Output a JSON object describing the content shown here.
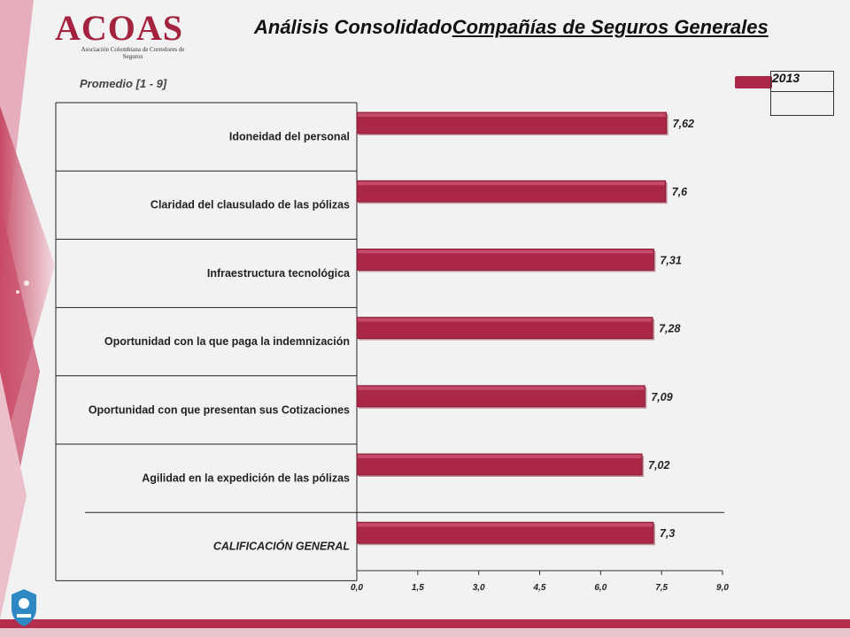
{
  "header": {
    "logo_word": "ACOAS",
    "logo_subtitle": "Asociación Colombiana de Corredores de Seguros",
    "title_main": "Análisis Consolidado",
    "title_sub": "Compañías de Seguros Generales"
  },
  "scale_label": "Promedio  [1 - 9]",
  "legend": {
    "year": "2013",
    "color": "#ab2747"
  },
  "chart_data": {
    "type": "bar",
    "orientation": "horizontal",
    "categories": [
      "Idoneidad del personal",
      "Claridad del clausulado de las pólizas",
      "Infraestructura tecnológica",
      "Oportunidad con la que paga la indemnización",
      "Oportunidad con que presentan sus Cotizaciones",
      "Agilidad en la expedición de las pólizas",
      "CALIFICACIÓN GENERAL"
    ],
    "series": [
      {
        "name": "2013",
        "values": [
          7.62,
          7.6,
          7.31,
          7.28,
          7.09,
          7.02,
          7.3
        ],
        "labels": [
          "7,62",
          "7,6",
          "7,31",
          "7,28",
          "7,09",
          "7,02",
          "7,3"
        ]
      }
    ],
    "xlim": [
      0,
      9
    ],
    "xticks": [
      "0,0",
      "1,5",
      "3,0",
      "4,5",
      "6,0",
      "7,5",
      "9,0"
    ],
    "bar_color": "#ab2747",
    "legend_position": "top-right",
    "grid": false
  },
  "colors": {
    "accent": "#ab2747",
    "band": "#b52d4c"
  },
  "icons": {
    "bottom_left": "acoas-emblem-icon"
  }
}
